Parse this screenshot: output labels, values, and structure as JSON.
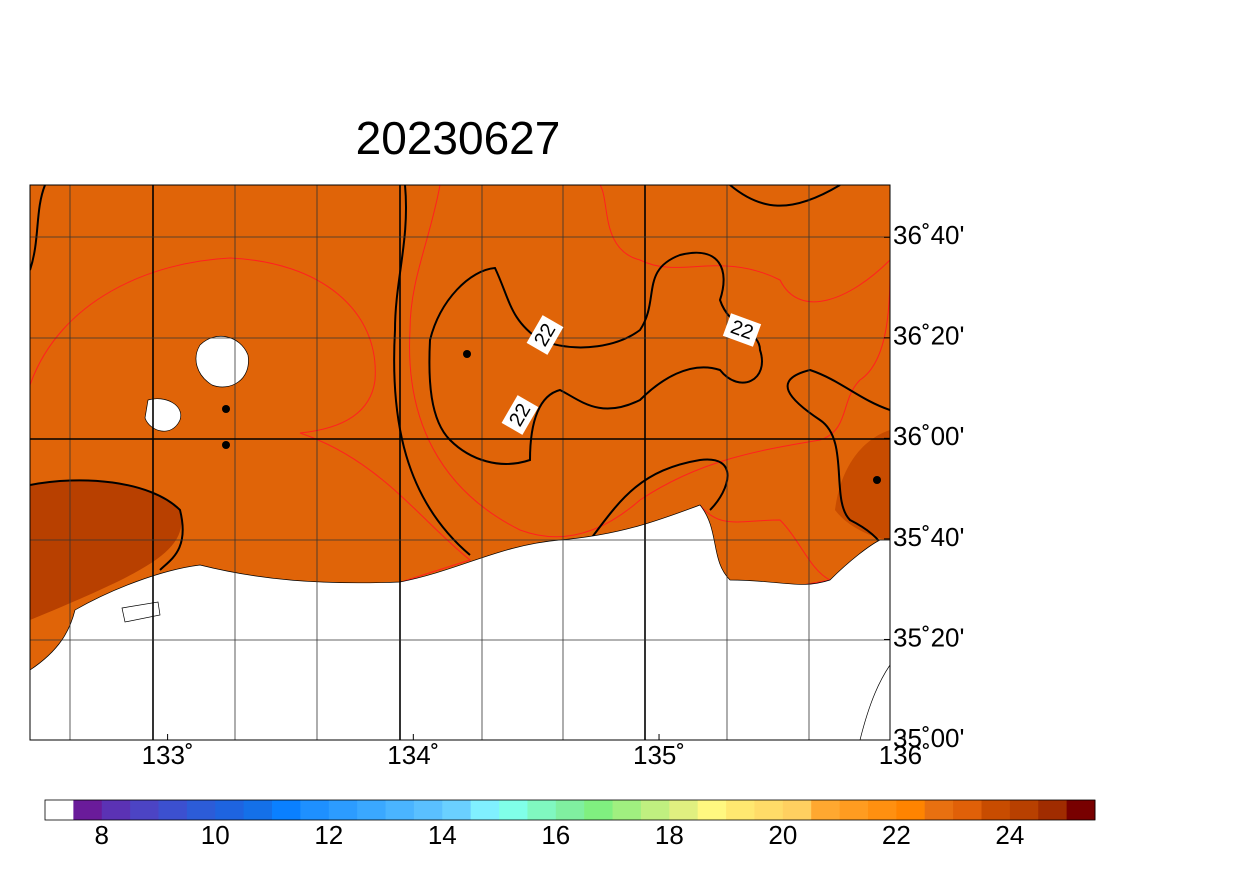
{
  "title": "20230627",
  "map": {
    "xlim": [
      132.44,
      135.94
    ],
    "ylim": [
      35,
      36.84
    ],
    "lon_ticks": [
      {
        "value": 133,
        "label": "133˚"
      },
      {
        "value": 134,
        "label": "134˚"
      },
      {
        "value": 135,
        "label": "135˚"
      },
      {
        "value": 136,
        "label": "136˚"
      }
    ],
    "lat_ticks": [
      {
        "value": 35,
        "label": "35˚00'"
      },
      {
        "value": 35.3333,
        "label": "35˚20'"
      },
      {
        "value": 35.6667,
        "label": "35˚40'"
      },
      {
        "value": 36,
        "label": "36˚00'"
      },
      {
        "value": 36.3333,
        "label": "36˚20'"
      },
      {
        "value": 36.6667,
        "label": "36˚40'"
      }
    ],
    "contour_labels": [
      22,
      22,
      22
    ]
  },
  "colorbar": {
    "lim": [
      7,
      25.5
    ],
    "colors": [
      "#ffffff",
      "#6a1b9a",
      "#5b32b4",
      "#4c44c4",
      "#3c50d0",
      "#2c5cd8",
      "#1e64e0",
      "#1470e8",
      "#0a80ff",
      "#1e90ff",
      "#2c9cff",
      "#3aa8ff",
      "#4ab4ff",
      "#5ac0ff",
      "#6ad0ff",
      "#80f0ff",
      "#80ffe8",
      "#80f8c0",
      "#80f0a0",
      "#80f080",
      "#a0f080",
      "#c0f080",
      "#e0f080",
      "#fff880",
      "#ffe870",
      "#ffdc68",
      "#ffd060",
      "#ffa830",
      "#ff9c20",
      "#ff9010",
      "#ff8400",
      "#e87010",
      "#e06008",
      "#c84c00",
      "#b84000",
      "#a02c00",
      "#780000"
    ],
    "ticks": [
      8,
      10,
      12,
      14,
      16,
      18,
      20,
      22,
      24
    ]
  }
}
